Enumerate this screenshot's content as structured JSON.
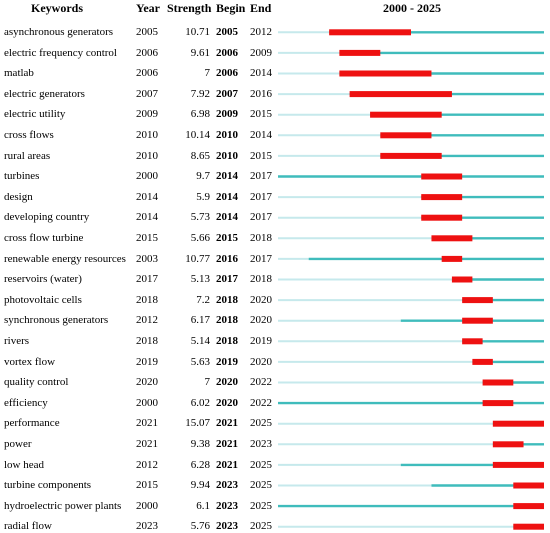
{
  "chart_data": {
    "type": "table",
    "title": "2000 - 2025",
    "columns": [
      "Keywords",
      "Year",
      "Strength",
      "Begin",
      "End"
    ],
    "range": [
      2000,
      2025
    ],
    "colors": {
      "burst": "#ee1111",
      "active": "#3fbcbc",
      "inactive": "#c6e9ec"
    },
    "rows": [
      {
        "keyword": "asynchronous generators",
        "year": 2005,
        "strength": "10.71",
        "begin": 2005,
        "end": 2012
      },
      {
        "keyword": "electric frequency control",
        "year": 2006,
        "strength": "9.61",
        "begin": 2006,
        "end": 2009
      },
      {
        "keyword": "matlab",
        "year": 2006,
        "strength": "7",
        "begin": 2006,
        "end": 2014
      },
      {
        "keyword": "electric generators",
        "year": 2007,
        "strength": "7.92",
        "begin": 2007,
        "end": 2016
      },
      {
        "keyword": "electric utility",
        "year": 2009,
        "strength": "6.98",
        "begin": 2009,
        "end": 2015
      },
      {
        "keyword": "cross flows",
        "year": 2010,
        "strength": "10.14",
        "begin": 2010,
        "end": 2014
      },
      {
        "keyword": "rural areas",
        "year": 2010,
        "strength": "8.65",
        "begin": 2010,
        "end": 2015
      },
      {
        "keyword": "turbines",
        "year": 2000,
        "strength": "9.7",
        "begin": 2014,
        "end": 2017
      },
      {
        "keyword": "design",
        "year": 2014,
        "strength": "5.9",
        "begin": 2014,
        "end": 2017
      },
      {
        "keyword": "developing country",
        "year": 2014,
        "strength": "5.73",
        "begin": 2014,
        "end": 2017
      },
      {
        "keyword": "cross flow turbine",
        "year": 2015,
        "strength": "5.66",
        "begin": 2015,
        "end": 2018
      },
      {
        "keyword": "renewable energy resources",
        "year": 2003,
        "strength": "10.77",
        "begin": 2016,
        "end": 2017
      },
      {
        "keyword": "reservoirs (water)",
        "year": 2017,
        "strength": "5.13",
        "begin": 2017,
        "end": 2018
      },
      {
        "keyword": "photovoltaic cells",
        "year": 2018,
        "strength": "7.2",
        "begin": 2018,
        "end": 2020
      },
      {
        "keyword": "synchronous generators",
        "year": 2012,
        "strength": "6.17",
        "begin": 2018,
        "end": 2020
      },
      {
        "keyword": "rivers",
        "year": 2018,
        "strength": "5.14",
        "begin": 2018,
        "end": 2019
      },
      {
        "keyword": "vortex flow",
        "year": 2019,
        "strength": "5.63",
        "begin": 2019,
        "end": 2020
      },
      {
        "keyword": "quality control",
        "year": 2020,
        "strength": "7",
        "begin": 2020,
        "end": 2022
      },
      {
        "keyword": "efficiency",
        "year": 2000,
        "strength": "6.02",
        "begin": 2020,
        "end": 2022
      },
      {
        "keyword": "performance",
        "year": 2021,
        "strength": "15.07",
        "begin": 2021,
        "end": 2025
      },
      {
        "keyword": "power",
        "year": 2021,
        "strength": "9.38",
        "begin": 2021,
        "end": 2023
      },
      {
        "keyword": "low head",
        "year": 2012,
        "strength": "6.28",
        "begin": 2021,
        "end": 2025
      },
      {
        "keyword": "turbine components",
        "year": 2015,
        "strength": "9.94",
        "begin": 2023,
        "end": 2025
      },
      {
        "keyword": "hydroelectric power plants",
        "year": 2000,
        "strength": "6.1",
        "begin": 2023,
        "end": 2025
      },
      {
        "keyword": "radial flow",
        "year": 2023,
        "strength": "5.76",
        "begin": 2023,
        "end": 2025
      }
    ]
  }
}
